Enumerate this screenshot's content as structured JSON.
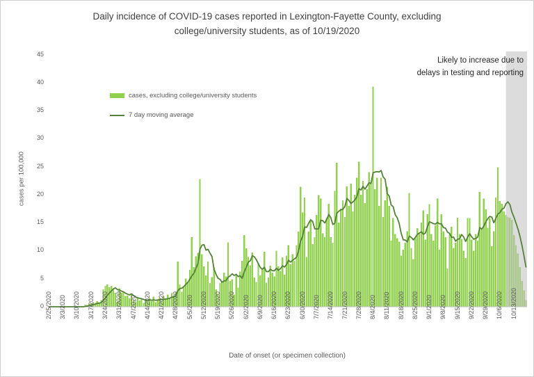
{
  "title": "Daily incidence of COVID-19 cases reported in Lexington-Fayette County, excluding college/university students, as of 10/19/2020",
  "annotation": "Likely to increase due to delays in testing and reporting",
  "legend": {
    "bars": "cases, excluding college/university students",
    "line": "7 day moving average"
  },
  "colors": {
    "bar": "#92d050",
    "line": "#538135",
    "band": "rgba(191,191,191,0.55)",
    "axis": "#bfbfbf"
  },
  "chart_data": {
    "type": "bar",
    "title": "Daily incidence of COVID-19 cases reported in Lexington-Fayette County, excluding college/university students, as of 10/19/2020",
    "xlabel": "Date of onset (or specimen collection)",
    "ylabel": "cases per 100,000",
    "ylim": [
      0,
      45
    ],
    "y_ticks": [
      0,
      5,
      10,
      15,
      20,
      25,
      30,
      35,
      40,
      45
    ],
    "x_start_date": "2/25/2020",
    "x_end_date": "10/19/2020",
    "x_tick_every_days": 7,
    "x_tick_labels": [
      "2/25/2020",
      "3/3/2020",
      "3/10/2020",
      "3/17/2020",
      "3/24/2020",
      "3/31/2020",
      "4/7/2020",
      "4/14/2020",
      "4/21/2020",
      "4/28/2020",
      "5/5/2020",
      "5/12/2020",
      "5/19/2020",
      "5/26/2020",
      "6/2/2020",
      "6/9/2020",
      "6/16/2020",
      "6/23/2020",
      "6/30/2020",
      "7/7/2020",
      "7/14/2020",
      "7/21/2020",
      "7/28/2020",
      "8/4/2020",
      "8/11/2020",
      "8/18/2020",
      "8/25/2020",
      "9/1/2020",
      "9/8/2020",
      "9/15/2020",
      "9/22/2020",
      "9/29/2020",
      "10/6/2020",
      "10/13/2020"
    ],
    "series": [
      {
        "name": "cases, excluding college/university students",
        "type": "bar",
        "color": "#92d050",
        "values": [
          0,
          0,
          0,
          0,
          0,
          0,
          0,
          0,
          0,
          0,
          0,
          0,
          0,
          0,
          0,
          0,
          0,
          0,
          0.4,
          0.3,
          0.5,
          0.6,
          0.8,
          0.7,
          1.0,
          0.6,
          1.2,
          3.1,
          3.7,
          4.0,
          3.5,
          3.7,
          3.1,
          2.5,
          0.9,
          3.3,
          2.5,
          2.7,
          1.9,
          2.0,
          1.5,
          2.2,
          1.2,
          0.8,
          1.7,
          1.1,
          1.5,
          0.7,
          1.3,
          0.9,
          1.5,
          1.0,
          1.8,
          0.8,
          1.2,
          1.6,
          1.0,
          1.9,
          1.3,
          2.2,
          1.5,
          2.4,
          1.8,
          2.7,
          8.1,
          4.0,
          2.7,
          3.6,
          5.0,
          4.4,
          6.6,
          12.4,
          7.1,
          9.0,
          9.6,
          22.8,
          9.4,
          7.2,
          5.6,
          8.1,
          4.2,
          5.3,
          7.0,
          3.1,
          2.3,
          4.2,
          4.4,
          6.1,
          5.4,
          11.5,
          4.6,
          4.9,
          2.2,
          5.8,
          3.4,
          6.3,
          8.2,
          12.8,
          10.4,
          8.9,
          7.4,
          9.7,
          5.2,
          4.4,
          7.8,
          5.6,
          6.8,
          9.8,
          4.3,
          5.2,
          7.3,
          6.1,
          5.4,
          10.0,
          7.2,
          6.4,
          8.8,
          5.7,
          9.1,
          11.0,
          7.6,
          9.4,
          8.2,
          11.0,
          13.4,
          21.4,
          16.8,
          19.5,
          8.9,
          13.4,
          15.3,
          11.2,
          12.4,
          16.4,
          19.9,
          19.3,
          13.1,
          12.4,
          15.8,
          18.4,
          12.4,
          11.4,
          20.7,
          25.7,
          15.0,
          17.5,
          19.0,
          16.0,
          21.5,
          18.0,
          22.0,
          17.0,
          20.0,
          23.0,
          25.9,
          20.0,
          22.5,
          18.5,
          21.0,
          24.0,
          22.0,
          39.3,
          21.0,
          23.0,
          18.0,
          23.0,
          16.0,
          19.0,
          21.4,
          18.0,
          11.8,
          15.8,
          13.0,
          12.2,
          11.6,
          9.1,
          10.2,
          11.4,
          13.5,
          20.3,
          10.5,
          8.5,
          12.2,
          14.0,
          13.1,
          15.0,
          17.2,
          12.0,
          16.5,
          18.3,
          13.0,
          11.8,
          14.5,
          19.3,
          10.2,
          16.5,
          13.5,
          12.4,
          6.8,
          13.0,
          14.3,
          10.5,
          11.4,
          15.9,
          13.0,
          12.1,
          10.0,
          8.7,
          15.8,
          15.8,
          12.0,
          10.0,
          13.0,
          11.8,
          20.5,
          14.0,
          19.3,
          17.4,
          14.1,
          15.8,
          10.8,
          13.5,
          19.5,
          24.9,
          18.9,
          18.4,
          17.0,
          16.4,
          16.0,
          15.9,
          15.5,
          12.8,
          11.0,
          9.5,
          7.1,
          4.6,
          2.9,
          1.2
        ]
      },
      {
        "name": "7 day moving average",
        "type": "line",
        "color": "#538135",
        "derived": "trailing 7-day moving average of the bar series"
      }
    ],
    "shaded_region": {
      "label": "Likely to increase due to delays in testing and reporting",
      "start_date": "10/10/2020",
      "end_date": "10/19/2020",
      "start_index": 228,
      "color": "rgba(191,191,191,0.55)"
    },
    "grid": false,
    "legend_position": "top-left inside plot"
  }
}
